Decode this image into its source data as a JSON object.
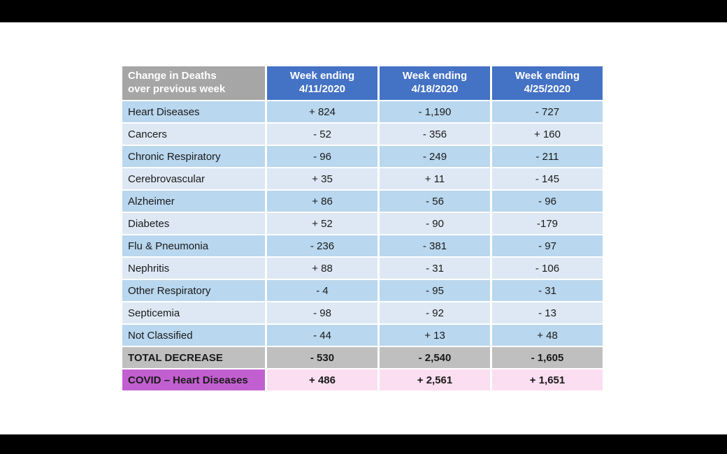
{
  "colors": {
    "header_blue": "#4472c4",
    "corner_gray": "#a6a6a6",
    "row_dark_blue": "#b9d7ee",
    "row_light_blue": "#dde8f4",
    "total_gray": "#bfbfbf",
    "covid_label_purple": "#c25fd0",
    "covid_value_pink": "#fbdef1",
    "letterbox_black": "#000000"
  },
  "chart_data": {
    "type": "table",
    "title": "Change in Deaths over previous week",
    "corner_header": "Change in Deaths\nover previous week",
    "column_headers": [
      "Week ending\n4/11/2020",
      "Week ending\n4/18/2020",
      "Week ending\n4/25/2020"
    ],
    "rows": [
      {
        "label": "Heart Diseases",
        "values": [
          "+ 824",
          "- 1,190",
          "- 727"
        ]
      },
      {
        "label": "Cancers",
        "values": [
          "- 52",
          "- 356",
          "+ 160"
        ]
      },
      {
        "label": "Chronic Respiratory",
        "values": [
          "- 96",
          "- 249",
          "- 211"
        ]
      },
      {
        "label": "Cerebrovascular",
        "values": [
          "+ 35",
          "+ 11",
          "- 145"
        ]
      },
      {
        "label": "Alzheimer",
        "values": [
          "+ 86",
          "- 56",
          "- 96"
        ]
      },
      {
        "label": "Diabetes",
        "values": [
          "+ 52",
          "- 90",
          "-179"
        ]
      },
      {
        "label": "Flu & Pneumonia",
        "values": [
          "- 236",
          "- 381",
          "- 97"
        ]
      },
      {
        "label": "Nephritis",
        "values": [
          "+ 88",
          "- 31",
          "- 106"
        ]
      },
      {
        "label": "Other Respiratory",
        "values": [
          "- 4",
          "- 95",
          "- 31"
        ]
      },
      {
        "label": "Septicemia",
        "values": [
          "- 98",
          "- 92",
          "- 13"
        ]
      },
      {
        "label": "Not Classified",
        "values": [
          "- 44",
          "+ 13",
          "+ 48"
        ]
      }
    ],
    "total_row": {
      "label": "TOTAL DECREASE",
      "values": [
        "- 530",
        "- 2,540",
        "- 1,605"
      ]
    },
    "covid_row": {
      "label": "COVID – Heart Diseases",
      "values": [
        "+ 486",
        "+ 2,561",
        "+ 1,651"
      ]
    }
  }
}
